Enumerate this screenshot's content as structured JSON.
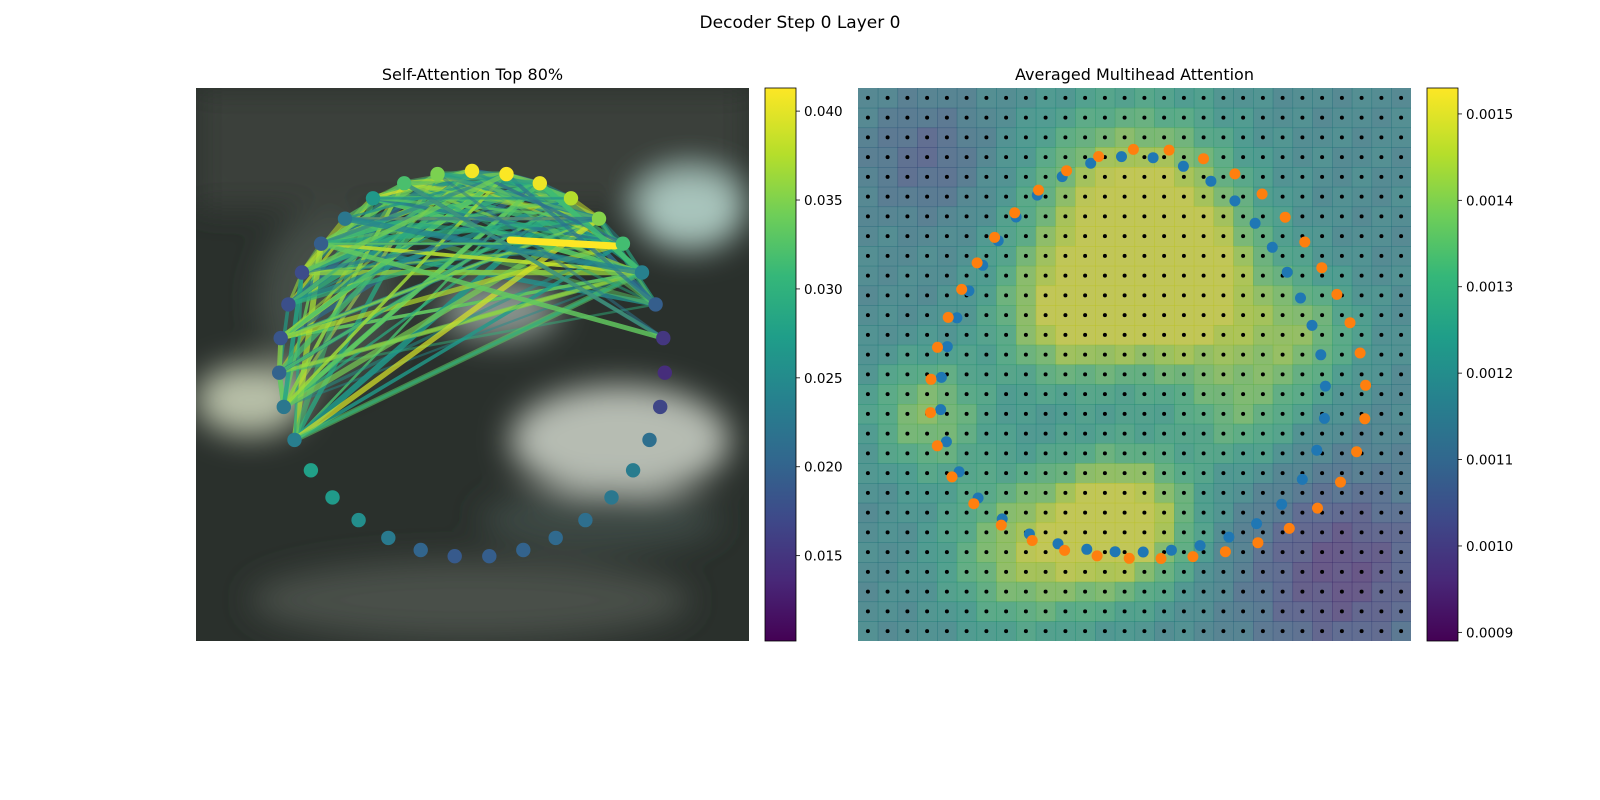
{
  "figure": {
    "title": "Decoder Step 0 Layer 0"
  },
  "chart_data": [
    {
      "type": "scatter",
      "title": "Self-Attention Top 80%",
      "description_points": "35 contour points arranged on a ring, colored by attention weight; attention edges between points",
      "colorbar": {
        "colormap": "viridis",
        "range": [
          0.0102,
          0.0413
        ],
        "ticks": [
          "0.015",
          "0.020",
          "0.025",
          "0.030",
          "0.035",
          "0.040"
        ]
      },
      "point_weights": [
        0.0408,
        0.0412,
        0.0405,
        0.0378,
        0.0355,
        0.0318,
        0.0238,
        0.0195,
        0.0152,
        0.0142,
        0.0168,
        0.0215,
        0.0232,
        0.0225,
        0.0215,
        0.0208,
        0.02,
        0.0195,
        0.019,
        0.0202,
        0.023,
        0.0255,
        0.027,
        0.0278,
        0.0235,
        0.0225,
        0.02,
        0.0185,
        0.0178,
        0.0175,
        0.0195,
        0.0225,
        0.0268,
        0.0322,
        0.035
      ]
    },
    {
      "type": "heatmap",
      "title": "Averaged Multihead Attention",
      "grid_size": 28,
      "colorbar": {
        "colormap": "viridis",
        "range": [
          0.00089,
          0.00153
        ],
        "ticks": [
          "0.0009",
          "0.0010",
          "0.0011",
          "0.0012",
          "0.0013",
          "0.0014",
          "0.0015"
        ]
      },
      "series": [
        {
          "name": "",
          "color": "#1f77b4"
        },
        {
          "name": "",
          "color": "#ff7f0e"
        }
      ]
    }
  ],
  "colors": {
    "viridis": [
      "#440154",
      "#482878",
      "#3e4989",
      "#31688e",
      "#26828e",
      "#1f9e89",
      "#35b779",
      "#6ece58",
      "#b5de2b",
      "#fde725"
    ],
    "grid_dot": "#000000"
  }
}
